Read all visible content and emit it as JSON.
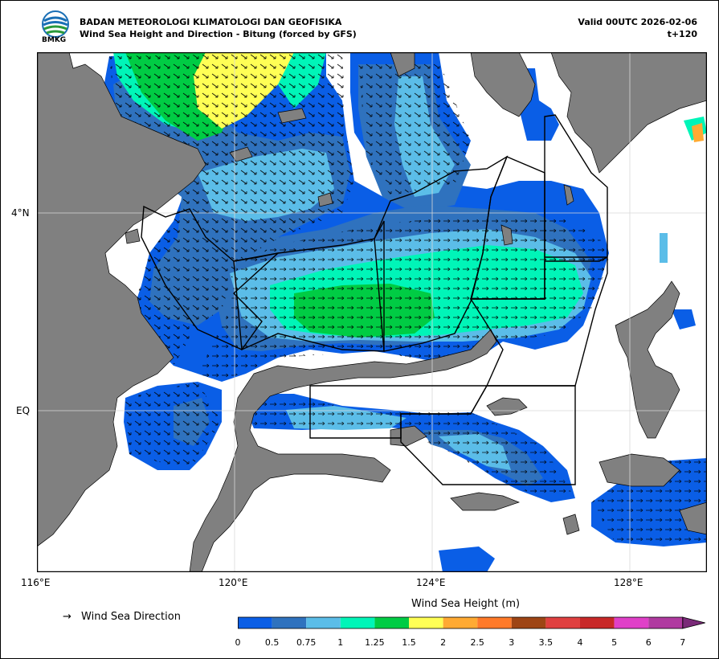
{
  "header": {
    "agency": "BADAN METEOROLOGI KLIMATOLOGI DAN GEOFISIKA",
    "product": "Wind Sea Height and Direction - Bitung (forced by GFS)",
    "valid": "Valid 00UTC 2026-02-06",
    "lead": "t+120",
    "logo_text": "BMKG"
  },
  "axes": {
    "lon_ticks": [
      "116°E",
      "120°E",
      "124°E",
      "128°E"
    ],
    "lat_ticks": [
      "4°N",
      "EQ"
    ]
  },
  "legend": {
    "arrow_symbol": "→",
    "direction_label": "Wind Sea Direction"
  },
  "colorbar": {
    "title": "Wind Sea Height (m)",
    "labels": [
      "0",
      "0.5",
      "0.75",
      "1",
      "1.25",
      "1.5",
      "2",
      "2.5",
      "3",
      "3.5",
      "4",
      "5",
      "6",
      "7"
    ],
    "colors": [
      "#0a5ee6",
      "#2f72be",
      "#5bbde8",
      "#00f5b8",
      "#00cc44",
      "#ffff55",
      "#ffaa33",
      "#ff7a2a",
      "#9e4515",
      "#e04040",
      "#c82828",
      "#e040c8",
      "#b03aa0"
    ],
    "extend_color": "#7a2a78"
  },
  "colors": {
    "land": "#808080",
    "sea_bg": "#ffffff",
    "grid": "#d8d8d8"
  }
}
